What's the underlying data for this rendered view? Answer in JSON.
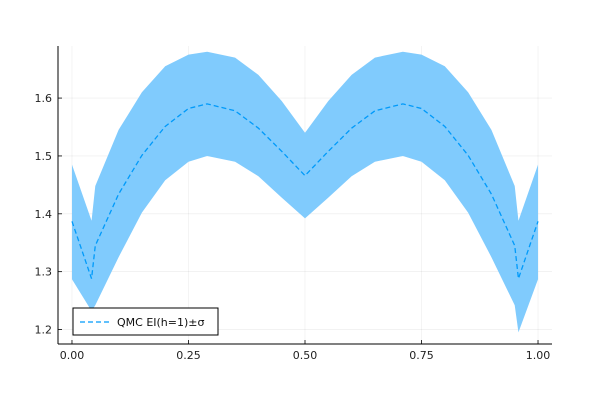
{
  "chart_data": {
    "type": "area",
    "title": "",
    "xlabel": "",
    "ylabel": "",
    "xlim": [
      -0.03,
      1.03
    ],
    "ylim": [
      1.175,
      1.69
    ],
    "xticks": [
      0.0,
      0.25,
      0.5,
      0.75,
      1.0
    ],
    "xtick_labels": [
      "0.00",
      "0.25",
      "0.50",
      "0.75",
      "1.00"
    ],
    "yticks": [
      1.2,
      1.3,
      1.4,
      1.5,
      1.6
    ],
    "ytick_labels": [
      "1.2",
      "1.3",
      "1.4",
      "1.5",
      "1.6"
    ],
    "grid": true,
    "legend_position": "bottom-left",
    "series": [
      {
        "name": "QMC EI(h=1)±σ",
        "line_color": "#009AFA",
        "band_color": "#80CBFD",
        "line_style": "dashed",
        "x": [
          0.0,
          0.042,
          0.05,
          0.1,
          0.15,
          0.2,
          0.25,
          0.29,
          0.35,
          0.4,
          0.45,
          0.5,
          0.55,
          0.6,
          0.65,
          0.71,
          0.75,
          0.8,
          0.85,
          0.9,
          0.95,
          0.958,
          1.0
        ],
        "y": [
          1.387,
          1.288,
          1.345,
          1.434,
          1.501,
          1.551,
          1.582,
          1.59,
          1.578,
          1.548,
          1.508,
          1.466,
          1.508,
          1.548,
          1.578,
          1.59,
          1.582,
          1.551,
          1.501,
          1.434,
          1.345,
          1.288,
          1.387
        ],
        "lower": [
          1.287,
          1.232,
          1.242,
          1.325,
          1.402,
          1.458,
          1.49,
          1.5,
          1.49,
          1.465,
          1.428,
          1.392,
          1.428,
          1.465,
          1.49,
          1.5,
          1.49,
          1.458,
          1.402,
          1.325,
          1.242,
          1.195,
          1.287
        ],
        "upper": [
          1.485,
          1.388,
          1.448,
          1.545,
          1.61,
          1.655,
          1.675,
          1.68,
          1.67,
          1.64,
          1.595,
          1.54,
          1.595,
          1.64,
          1.67,
          1.68,
          1.675,
          1.655,
          1.61,
          1.545,
          1.448,
          1.388,
          1.485
        ]
      }
    ]
  }
}
